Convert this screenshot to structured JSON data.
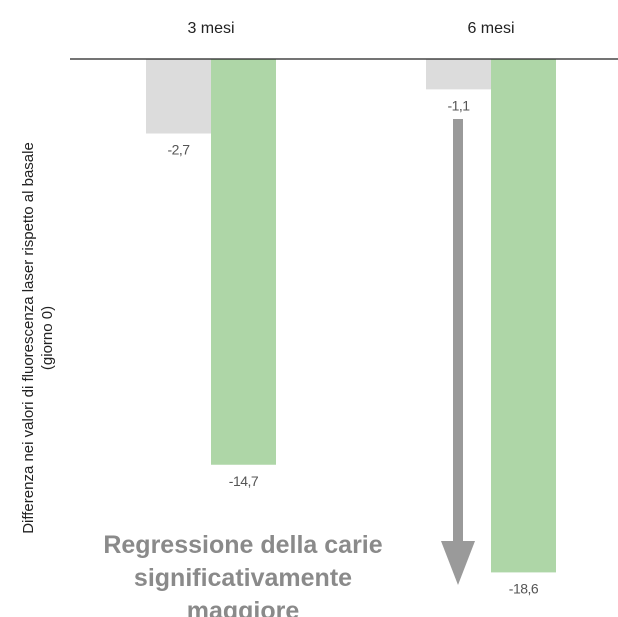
{
  "chart_data": {
    "type": "bar",
    "categories": [
      "3 mesi",
      "6 mesi"
    ],
    "series": [
      {
        "values": [
          -2.7,
          -1.1
        ],
        "value_labels": [
          "-2,7",
          "-1,1"
        ],
        "color": "#dcdcdc"
      },
      {
        "values": [
          -14.7,
          -18.6
        ],
        "value_labels": [
          "-14,7",
          "-18,6"
        ],
        "color": "#aed6a7"
      }
    ],
    "ylabel_lines": [
      "Differenza nei valori di fluorescenza laser rispetto al basale",
      "(giorno 0)"
    ],
    "ylim": [
      -19.6,
      0
    ],
    "grid": false,
    "annotation": {
      "lines": [
        "Regressione della carie",
        "significativamente",
        "maggiore"
      ],
      "color": "#8a8a8a"
    },
    "arrow_color": "#9a9a9a"
  }
}
